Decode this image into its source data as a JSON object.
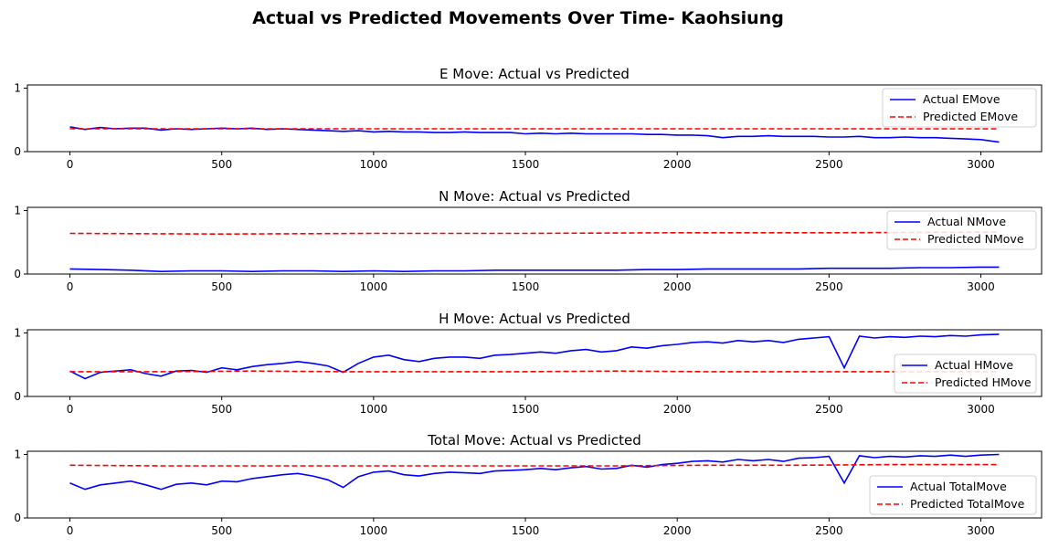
{
  "figure": {
    "title": "Actual vs Predicted Movements Over Time- Kaohsiung"
  },
  "chart_data": [
    {
      "type": "line",
      "title": "E Move: Actual vs Predicted",
      "xlim": [
        -140,
        3200
      ],
      "ylim": [
        0,
        1.05
      ],
      "xticks": [
        0,
        500,
        1000,
        1500,
        2000,
        2500,
        3000
      ],
      "yticks": [
        0,
        1
      ],
      "legend_position": "right",
      "series": [
        {
          "name": "Actual EMove",
          "color": "#0000ff",
          "style": "solid",
          "x": [
            0,
            50,
            100,
            150,
            200,
            250,
            300,
            350,
            400,
            450,
            500,
            550,
            600,
            650,
            700,
            750,
            800,
            850,
            900,
            950,
            1000,
            1050,
            1100,
            1150,
            1200,
            1250,
            1300,
            1350,
            1400,
            1450,
            1500,
            1550,
            1600,
            1650,
            1700,
            1750,
            1800,
            1850,
            1900,
            1950,
            2000,
            2050,
            2100,
            2150,
            2200,
            2250,
            2300,
            2350,
            2400,
            2450,
            2500,
            2550,
            2600,
            2650,
            2700,
            2750,
            2800,
            2850,
            2900,
            2950,
            3000,
            3060
          ],
          "y": [
            0.39,
            0.35,
            0.38,
            0.36,
            0.37,
            0.37,
            0.34,
            0.36,
            0.35,
            0.36,
            0.37,
            0.36,
            0.37,
            0.35,
            0.36,
            0.35,
            0.34,
            0.33,
            0.32,
            0.33,
            0.31,
            0.32,
            0.31,
            0.31,
            0.3,
            0.3,
            0.31,
            0.3,
            0.3,
            0.3,
            0.28,
            0.29,
            0.28,
            0.29,
            0.28,
            0.28,
            0.28,
            0.28,
            0.27,
            0.27,
            0.26,
            0.26,
            0.25,
            0.22,
            0.24,
            0.24,
            0.25,
            0.24,
            0.24,
            0.24,
            0.23,
            0.23,
            0.24,
            0.22,
            0.22,
            0.23,
            0.22,
            0.22,
            0.21,
            0.2,
            0.19,
            0.15
          ]
        },
        {
          "name": "Predicted EMove",
          "color": "#ff0000",
          "style": "dashed",
          "x": [
            0,
            3060
          ],
          "y": [
            0.36,
            0.36
          ]
        }
      ]
    },
    {
      "type": "line",
      "title": "N Move: Actual vs Predicted",
      "xlim": [
        -140,
        3200
      ],
      "ylim": [
        0,
        1.05
      ],
      "xticks": [
        0,
        500,
        1000,
        1500,
        2000,
        2500,
        3000
      ],
      "yticks": [
        0,
        1
      ],
      "legend_position": "upper right",
      "series": [
        {
          "name": "Actual NMove",
          "color": "#0000ff",
          "style": "solid",
          "x": [
            0,
            100,
            200,
            300,
            400,
            500,
            600,
            700,
            800,
            900,
            1000,
            1100,
            1200,
            1300,
            1400,
            1500,
            1600,
            1700,
            1800,
            1900,
            2000,
            2100,
            2200,
            2300,
            2400,
            2500,
            2600,
            2700,
            2800,
            2900,
            3000,
            3060
          ],
          "y": [
            0.08,
            0.07,
            0.06,
            0.04,
            0.05,
            0.05,
            0.04,
            0.05,
            0.05,
            0.04,
            0.05,
            0.04,
            0.05,
            0.05,
            0.06,
            0.06,
            0.06,
            0.06,
            0.06,
            0.07,
            0.07,
            0.08,
            0.08,
            0.08,
            0.08,
            0.09,
            0.09,
            0.09,
            0.1,
            0.1,
            0.11,
            0.11
          ]
        },
        {
          "name": "Predicted NMove",
          "color": "#ff0000",
          "style": "dashed",
          "x": [
            0,
            500,
            1000,
            1500,
            2000,
            2500,
            3060
          ],
          "y": [
            0.64,
            0.63,
            0.64,
            0.64,
            0.65,
            0.65,
            0.66
          ]
        }
      ]
    },
    {
      "type": "line",
      "title": "H Move: Actual vs Predicted",
      "xlim": [
        -140,
        3200
      ],
      "ylim": [
        0,
        1.05
      ],
      "xticks": [
        0,
        500,
        1000,
        1500,
        2000,
        2500,
        3000
      ],
      "yticks": [
        0,
        1
      ],
      "legend_position": "lower right",
      "series": [
        {
          "name": "Actual HMove",
          "color": "#0000ff",
          "style": "solid",
          "x": [
            0,
            50,
            100,
            150,
            200,
            250,
            300,
            350,
            400,
            450,
            500,
            550,
            600,
            650,
            700,
            750,
            800,
            850,
            900,
            950,
            1000,
            1050,
            1100,
            1150,
            1200,
            1250,
            1300,
            1350,
            1400,
            1450,
            1500,
            1550,
            1600,
            1650,
            1700,
            1750,
            1800,
            1850,
            1900,
            1950,
            2000,
            2050,
            2100,
            2150,
            2200,
            2250,
            2300,
            2350,
            2400,
            2450,
            2500,
            2550,
            2600,
            2650,
            2700,
            2750,
            2800,
            2850,
            2900,
            2950,
            3000,
            3060
          ],
          "y": [
            0.4,
            0.28,
            0.38,
            0.4,
            0.42,
            0.36,
            0.32,
            0.4,
            0.41,
            0.38,
            0.45,
            0.42,
            0.47,
            0.5,
            0.52,
            0.55,
            0.52,
            0.48,
            0.38,
            0.52,
            0.62,
            0.65,
            0.58,
            0.55,
            0.6,
            0.62,
            0.62,
            0.6,
            0.65,
            0.66,
            0.68,
            0.7,
            0.68,
            0.72,
            0.74,
            0.7,
            0.72,
            0.78,
            0.76,
            0.8,
            0.82,
            0.85,
            0.86,
            0.84,
            0.88,
            0.86,
            0.88,
            0.85,
            0.9,
            0.92,
            0.94,
            0.45,
            0.95,
            0.92,
            0.94,
            0.93,
            0.95,
            0.94,
            0.96,
            0.95,
            0.97,
            0.98
          ]
        },
        {
          "name": "Predicted HMove",
          "color": "#ff0000",
          "style": "dashed",
          "x": [
            0,
            300,
            600,
            900,
            1200,
            1500,
            1800,
            2100,
            2400,
            2700,
            3060
          ],
          "y": [
            0.39,
            0.39,
            0.4,
            0.39,
            0.39,
            0.39,
            0.4,
            0.39,
            0.39,
            0.39,
            0.39
          ]
        }
      ]
    },
    {
      "type": "line",
      "title": "Total Move: Actual vs Predicted",
      "xlim": [
        -140,
        3200
      ],
      "ylim": [
        0,
        1.05
      ],
      "xticks": [
        0,
        500,
        1000,
        1500,
        2000,
        2500,
        3000
      ],
      "yticks": [
        0,
        1
      ],
      "legend_position": "lower right",
      "series": [
        {
          "name": "Actual TotalMove",
          "color": "#0000ff",
          "style": "solid",
          "x": [
            0,
            50,
            100,
            150,
            200,
            250,
            300,
            350,
            400,
            450,
            500,
            550,
            600,
            650,
            700,
            750,
            800,
            850,
            900,
            950,
            1000,
            1050,
            1100,
            1150,
            1200,
            1250,
            1300,
            1350,
            1400,
            1450,
            1500,
            1550,
            1600,
            1650,
            1700,
            1750,
            1800,
            1850,
            1900,
            1950,
            2000,
            2050,
            2100,
            2150,
            2200,
            2250,
            2300,
            2350,
            2400,
            2450,
            2500,
            2550,
            2600,
            2650,
            2700,
            2750,
            2800,
            2850,
            2900,
            2950,
            3000,
            3060
          ],
          "y": [
            0.55,
            0.45,
            0.52,
            0.55,
            0.58,
            0.52,
            0.45,
            0.53,
            0.55,
            0.52,
            0.58,
            0.57,
            0.62,
            0.65,
            0.68,
            0.7,
            0.66,
            0.6,
            0.48,
            0.65,
            0.72,
            0.74,
            0.68,
            0.66,
            0.7,
            0.72,
            0.71,
            0.7,
            0.74,
            0.75,
            0.76,
            0.78,
            0.76,
            0.79,
            0.81,
            0.77,
            0.78,
            0.83,
            0.8,
            0.84,
            0.86,
            0.89,
            0.9,
            0.88,
            0.92,
            0.9,
            0.92,
            0.89,
            0.94,
            0.95,
            0.97,
            0.55,
            0.98,
            0.95,
            0.97,
            0.96,
            0.98,
            0.97,
            0.99,
            0.97,
            0.99,
            1.0
          ]
        },
        {
          "name": "Predicted TotalMove",
          "color": "#ff0000",
          "style": "dashed",
          "x": [
            0,
            300,
            600,
            900,
            1200,
            1500,
            1800,
            2100,
            2400,
            2700,
            3060
          ],
          "y": [
            0.83,
            0.82,
            0.82,
            0.82,
            0.82,
            0.82,
            0.82,
            0.83,
            0.83,
            0.84,
            0.84
          ]
        }
      ]
    }
  ]
}
